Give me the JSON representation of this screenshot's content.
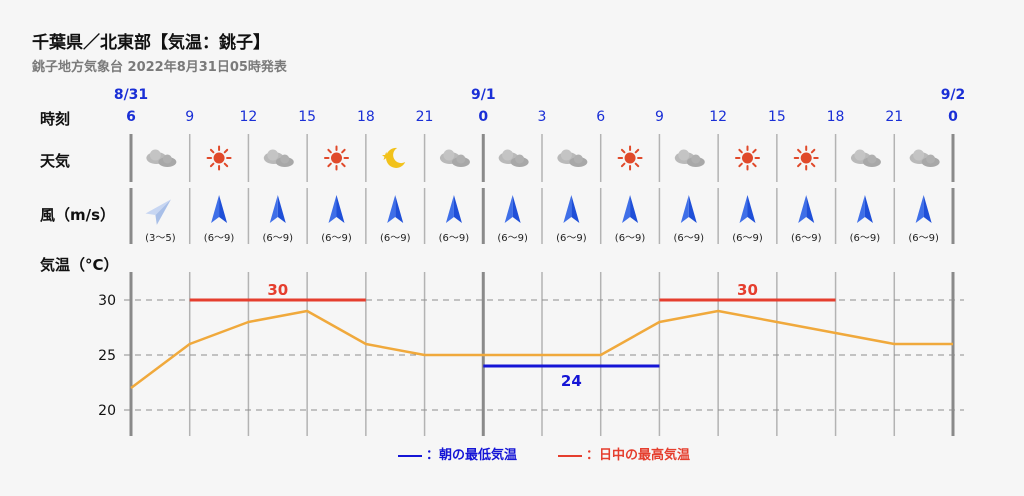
{
  "header": {
    "title": "千葉県／北東部【気温：銚子】",
    "subtitle": "銚子地方気象台 2022年8月31日05時発表"
  },
  "row_labels": {
    "time": "時刻",
    "weather": "天気",
    "wind": "風（m/s）",
    "temperature": "気温（°C）"
  },
  "legend": {
    "min": "：朝の最低気温",
    "max": "：日中の最高気温"
  },
  "colors": {
    "line": "#f0a93c",
    "max": "#e53e2e",
    "min": "#1515d6",
    "date": "#1a2fd6",
    "grid": "#b3b3b3",
    "dayline": "#8a8a8a"
  },
  "chart_data": {
    "type": "line",
    "date_labels": [
      {
        "label": "8/31",
        "at_index": 0
      },
      {
        "label": "9/1",
        "at_index": 6
      },
      {
        "label": "9/2",
        "at_index": 14
      }
    ],
    "hours": [
      "6",
      "9",
      "12",
      "15",
      "18",
      "21",
      "0",
      "3",
      "6",
      "9",
      "12",
      "15",
      "18",
      "21",
      "0"
    ],
    "weather": [
      "cloudy-icon",
      "sunny-icon",
      "cloudy-icon",
      "sunny-icon",
      "moon-icon",
      "cloudy-icon",
      "cloudy-icon",
      "cloudy-icon",
      "sunny-icon",
      "cloudy-icon",
      "sunny-icon",
      "sunny-icon",
      "cloudy-icon",
      "cloudy-icon"
    ],
    "wind": [
      {
        "speed": "(3〜5)",
        "direction": "SW"
      },
      {
        "speed": "(6〜9)",
        "direction": "S"
      },
      {
        "speed": "(6〜9)",
        "direction": "S"
      },
      {
        "speed": "(6〜9)",
        "direction": "S"
      },
      {
        "speed": "(6〜9)",
        "direction": "S"
      },
      {
        "speed": "(6〜9)",
        "direction": "S"
      },
      {
        "speed": "(6〜9)",
        "direction": "S"
      },
      {
        "speed": "(6〜9)",
        "direction": "S"
      },
      {
        "speed": "(6〜9)",
        "direction": "S"
      },
      {
        "speed": "(6〜9)",
        "direction": "S"
      },
      {
        "speed": "(6〜9)",
        "direction": "S"
      },
      {
        "speed": "(6〜9)",
        "direction": "S"
      },
      {
        "speed": "(6〜9)",
        "direction": "S"
      },
      {
        "speed": "(6〜9)",
        "direction": "S"
      }
    ],
    "temperature": [
      22,
      26,
      28,
      29,
      26,
      25,
      25,
      25,
      25,
      28,
      29,
      28,
      27,
      26,
      26
    ],
    "yticks": [
      20,
      25,
      30
    ],
    "ylim": [
      20,
      30
    ],
    "max_temp": [
      {
        "value": 30,
        "label": "30",
        "from_index": 1,
        "to_index": 4
      },
      {
        "value": 30,
        "label": "30",
        "from_index": 9,
        "to_index": 12
      }
    ],
    "min_temp": [
      {
        "value": 24,
        "label": "24",
        "from_index": 6,
        "to_index": 9
      }
    ],
    "grid": true
  }
}
